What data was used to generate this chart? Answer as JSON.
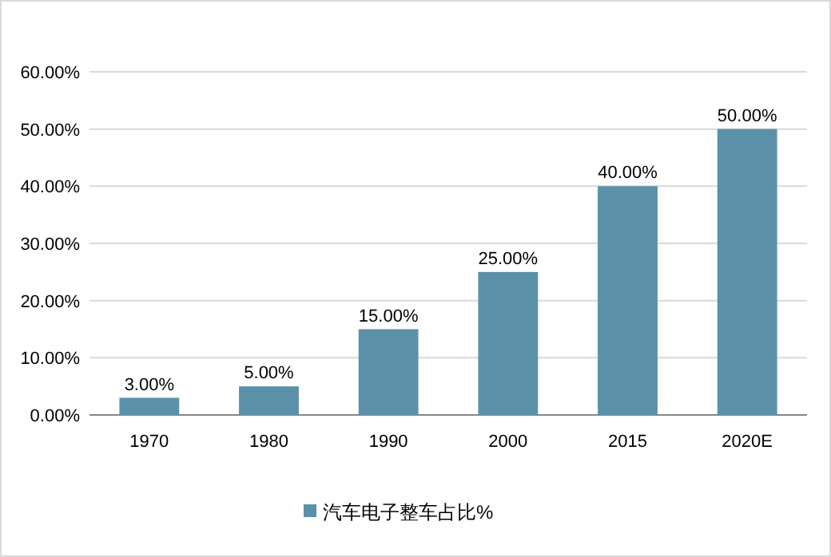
{
  "chart_data": {
    "type": "bar",
    "categories": [
      "1970",
      "1980",
      "1990",
      "2000",
      "2015",
      "2020E"
    ],
    "series": [
      {
        "name": "汽车电子整车占比%",
        "color": "#5b91a8",
        "values": [
          3,
          5,
          15,
          25,
          40,
          50
        ],
        "value_labels": [
          "3.00%",
          "5.00%",
          "15.00%",
          "25.00%",
          "40.00%",
          "50.00%"
        ]
      }
    ],
    "ylim": [
      0,
      60
    ],
    "yticks": [
      {
        "value": 0,
        "label": "0.00%"
      },
      {
        "value": 10,
        "label": "10.00%"
      },
      {
        "value": 20,
        "label": "20.00%"
      },
      {
        "value": 30,
        "label": "30.00%"
      },
      {
        "value": 40,
        "label": "40.00%"
      },
      {
        "value": 50,
        "label": "50.00%"
      },
      {
        "value": 60,
        "label": "60.00%"
      }
    ],
    "grid": "y",
    "legend": "bottom"
  }
}
